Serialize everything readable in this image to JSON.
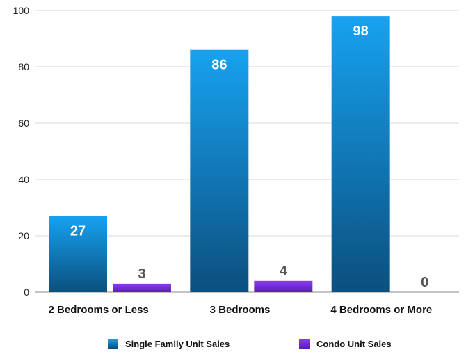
{
  "chart_data": {
    "type": "bar",
    "categories": [
      "2 Bedrooms or Less",
      "3 Bedrooms",
      "4 Bedrooms or More"
    ],
    "series": [
      {
        "name": "Single Family Unit Sales",
        "values": [
          27,
          86,
          98
        ],
        "color": "#1a8fd8"
      },
      {
        "name": "Condo Unit Sales",
        "values": [
          3,
          4,
          0
        ],
        "color": "#7b2fd6"
      }
    ],
    "ylim": [
      0,
      100
    ],
    "yticks": [
      0,
      20,
      40,
      60,
      80,
      100
    ],
    "grid": true,
    "legend_position": "bottom"
  }
}
